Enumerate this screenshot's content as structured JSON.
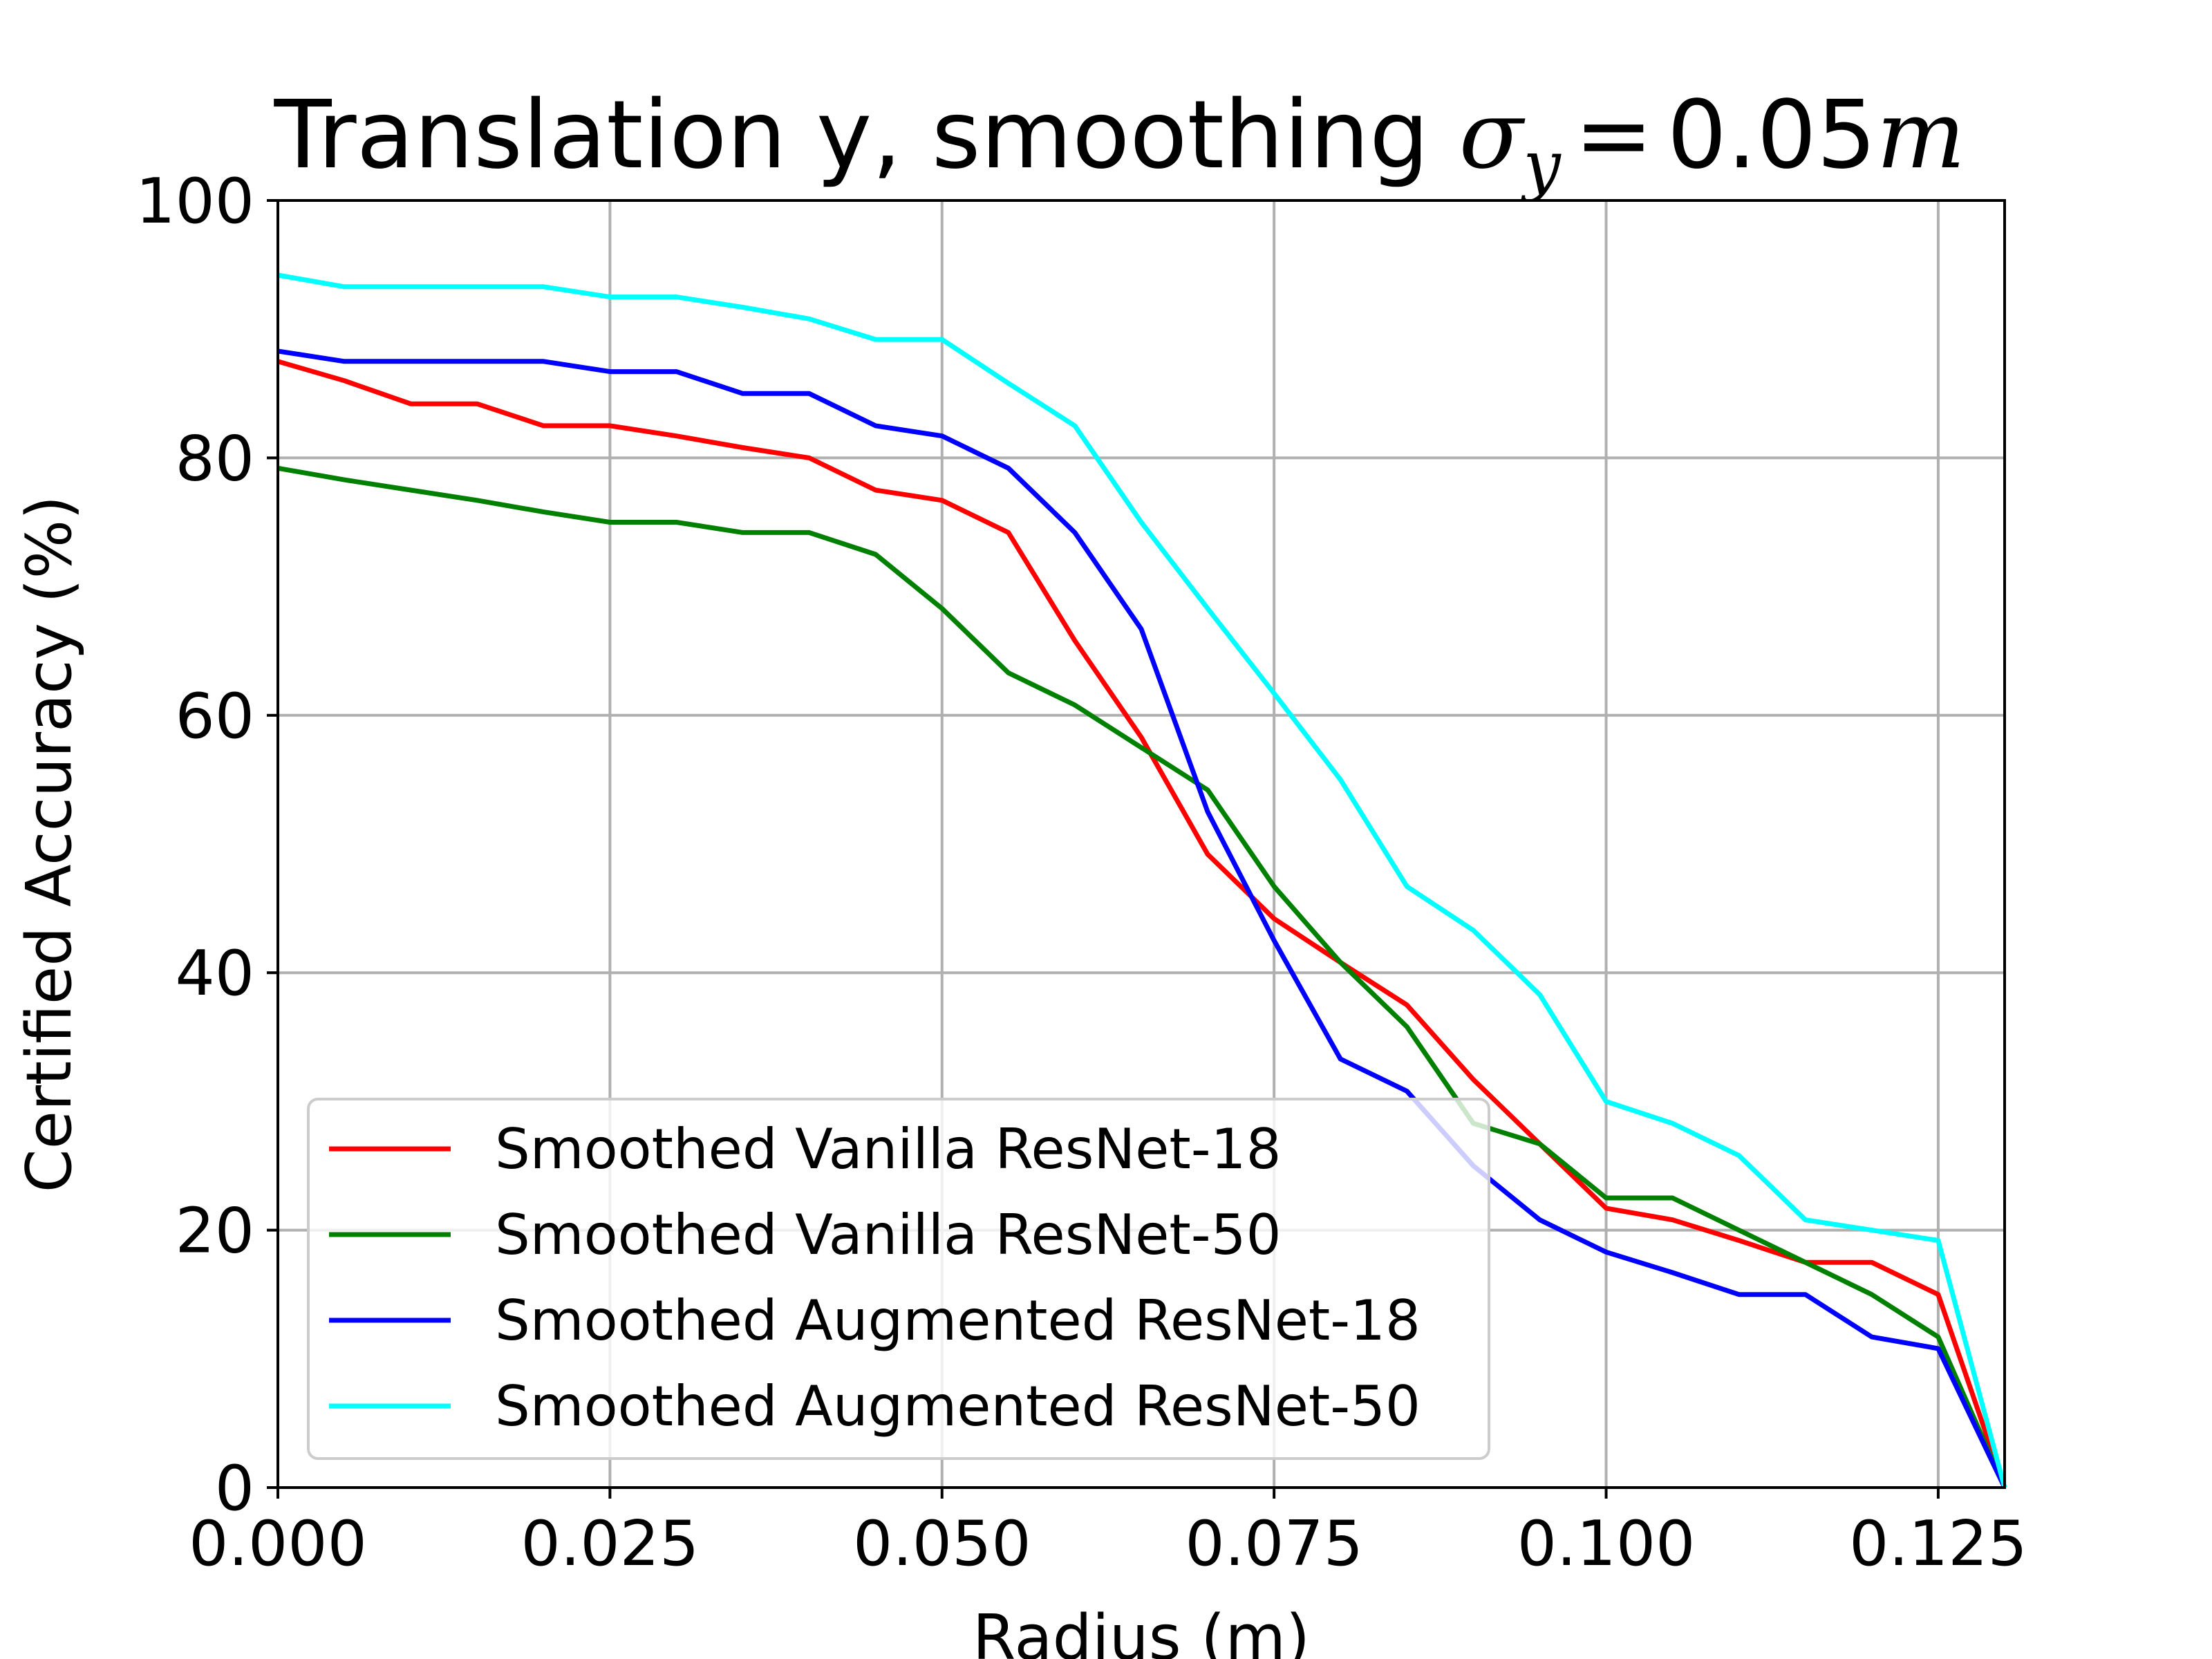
{
  "chart_data": {
    "type": "line",
    "title": {
      "prefix": "Translation y, smoothing ",
      "symbol": "σ",
      "subscript": "y",
      "equals": "=",
      "value": "0.05",
      "unit": "m"
    },
    "xlabel": "Radius (m)",
    "ylabel": "Certified Accuracy (%)",
    "xlim": [
      0.0,
      0.13
    ],
    "ylim": [
      0,
      100
    ],
    "xticks": [
      0.0,
      0.025,
      0.05,
      0.075,
      0.1,
      0.125
    ],
    "xtick_labels": [
      "0.000",
      "0.025",
      "0.050",
      "0.075",
      "0.100",
      "0.125"
    ],
    "yticks": [
      0,
      20,
      40,
      60,
      80,
      100
    ],
    "ytick_labels": [
      "0",
      "20",
      "40",
      "60",
      "80",
      "100"
    ],
    "grid": true,
    "legend_position": "lower-left",
    "x": [
      0.0,
      0.005,
      0.01,
      0.015,
      0.02,
      0.025,
      0.03,
      0.035,
      0.04,
      0.045,
      0.05,
      0.055,
      0.06,
      0.065,
      0.07,
      0.075,
      0.08,
      0.085,
      0.09,
      0.095,
      0.1,
      0.105,
      0.11,
      0.115,
      0.12,
      0.125,
      0.13
    ],
    "series": [
      {
        "name": "Smoothed Vanilla ResNet-18",
        "color": "#ff0000",
        "values": [
          87.5,
          86.0,
          84.2,
          84.2,
          82.5,
          82.5,
          81.7,
          80.8,
          80.0,
          77.5,
          76.7,
          74.2,
          65.8,
          58.3,
          49.2,
          44.2,
          40.8,
          37.5,
          31.7,
          26.7,
          21.7,
          20.8,
          19.2,
          17.5,
          17.5,
          15.0,
          0.0
        ]
      },
      {
        "name": "Smoothed Vanilla ResNet-50",
        "color": "#008000",
        "values": [
          79.2,
          78.3,
          77.5,
          76.7,
          75.8,
          75.0,
          75.0,
          74.2,
          74.2,
          72.5,
          68.3,
          63.3,
          60.8,
          57.5,
          54.2,
          46.7,
          40.8,
          35.8,
          28.3,
          26.7,
          22.5,
          22.5,
          20.0,
          17.5,
          15.0,
          11.7,
          0.0
        ]
      },
      {
        "name": "Smoothed Augmented ResNet-18",
        "color": "#0000ff",
        "values": [
          88.3,
          87.5,
          87.5,
          87.5,
          87.5,
          86.7,
          86.7,
          85.0,
          85.0,
          82.5,
          81.7,
          79.2,
          74.2,
          66.7,
          52.5,
          42.5,
          33.3,
          30.8,
          25.0,
          20.8,
          18.3,
          16.7,
          15.0,
          15.0,
          11.7,
          10.8,
          0.0
        ]
      },
      {
        "name": "Smoothed Augmented ResNet-50",
        "color": "#00ffff",
        "values": [
          94.2,
          93.3,
          93.3,
          93.3,
          93.3,
          92.5,
          92.5,
          91.7,
          90.8,
          89.2,
          89.2,
          85.8,
          82.5,
          75.0,
          68.3,
          61.7,
          55.0,
          46.7,
          43.3,
          38.3,
          30.0,
          28.3,
          25.8,
          20.8,
          20.0,
          19.2,
          0.0
        ]
      }
    ]
  }
}
